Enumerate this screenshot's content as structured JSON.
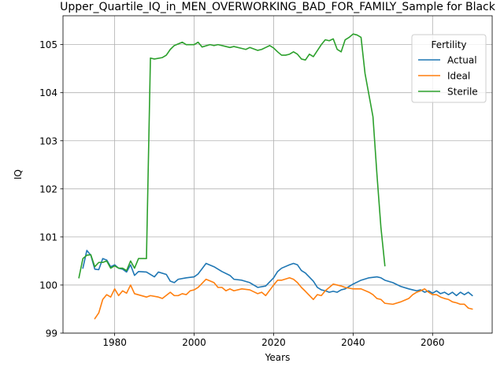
{
  "chart_data": {
    "type": "line",
    "title": "Upper_Quartile_IQ_in_MEN_OVERWORKING_BAD_FOR_FAMILY_Sample for Black",
    "xlabel": "Years",
    "ylabel": "IQ",
    "xlim": [
      1967,
      2075
    ],
    "ylim": [
      99,
      105.6
    ],
    "xticks": [
      1980,
      2000,
      2020,
      2040,
      2060
    ],
    "yticks": [
      99,
      100,
      101,
      102,
      103,
      104,
      105
    ],
    "grid": true,
    "legend": {
      "title": "Fertility",
      "placement": "top-right"
    },
    "series": [
      {
        "name": "Actual",
        "color": "#1f77b4",
        "x": [
          1972,
          1973,
          1974,
          1975,
          1976,
          1977,
          1978,
          1979,
          1980,
          1981,
          1982,
          1983,
          1984,
          1985,
          1986,
          1988,
          1990,
          1991,
          1993,
          1994,
          1995,
          1996,
          1998,
          2000,
          2001,
          2003,
          2005,
          2007,
          2009,
          2010,
          2012,
          2014,
          2016,
          2018,
          2020,
          2021,
          2022,
          2024,
          2025,
          2026,
          2027,
          2028,
          2030,
          2031,
          2032,
          2033,
          2034,
          2035,
          2036,
          2037,
          2038,
          2040,
          2042,
          2044,
          2046,
          2047,
          2048,
          2050,
          2052,
          2054,
          2055,
          2056,
          2057,
          2058,
          2059,
          2060,
          2061,
          2062,
          2063,
          2064,
          2065,
          2066,
          2067,
          2068,
          2069,
          2070
        ],
        "y": [
          100.35,
          100.72,
          100.62,
          100.33,
          100.32,
          100.55,
          100.52,
          100.38,
          100.42,
          100.35,
          100.33,
          100.27,
          100.42,
          100.2,
          100.28,
          100.27,
          100.17,
          100.27,
          100.22,
          100.08,
          100.05,
          100.12,
          100.15,
          100.17,
          100.23,
          100.45,
          100.38,
          100.28,
          100.2,
          100.12,
          100.1,
          100.05,
          99.95,
          99.98,
          100.15,
          100.28,
          100.35,
          100.42,
          100.45,
          100.42,
          100.3,
          100.25,
          100.08,
          99.95,
          99.9,
          99.88,
          99.85,
          99.87,
          99.85,
          99.9,
          99.92,
          100.02,
          100.1,
          100.15,
          100.17,
          100.15,
          100.1,
          100.05,
          99.97,
          99.92,
          99.9,
          99.88,
          99.9,
          99.85,
          99.88,
          99.83,
          99.88,
          99.82,
          99.85,
          99.8,
          99.85,
          99.78,
          99.85,
          99.8,
          99.85,
          99.78
        ]
      },
      {
        "name": "Ideal",
        "color": "#ff7f0e",
        "x": [
          1975,
          1976,
          1977,
          1978,
          1979,
          1980,
          1981,
          1982,
          1983,
          1984,
          1985,
          1988,
          1989,
          1991,
          1992,
          1994,
          1995,
          1996,
          1997,
          1998,
          1999,
          2000,
          2001,
          2003,
          2005,
          2006,
          2007,
          2008,
          2009,
          2010,
          2012,
          2014,
          2016,
          2017,
          2018,
          2020,
          2021,
          2022,
          2024,
          2025,
          2026,
          2027,
          2028,
          2030,
          2031,
          2032,
          2033,
          2035,
          2036,
          2037,
          2038,
          2040,
          2042,
          2044,
          2045,
          2046,
          2047,
          2048,
          2050,
          2052,
          2054,
          2055,
          2056,
          2057,
          2058,
          2059,
          2060,
          2061,
          2062,
          2063,
          2064,
          2065,
          2066,
          2067,
          2068,
          2069,
          2070
        ],
        "y": [
          99.3,
          99.42,
          99.7,
          99.8,
          99.75,
          99.92,
          99.78,
          99.88,
          99.83,
          100.0,
          99.82,
          99.75,
          99.78,
          99.75,
          99.72,
          99.85,
          99.78,
          99.78,
          99.82,
          99.8,
          99.88,
          99.9,
          99.95,
          100.12,
          100.05,
          99.95,
          99.95,
          99.88,
          99.92,
          99.88,
          99.92,
          99.9,
          99.82,
          99.85,
          99.78,
          100.0,
          100.1,
          100.1,
          100.15,
          100.12,
          100.05,
          99.95,
          99.87,
          99.7,
          99.8,
          99.78,
          99.88,
          100.02,
          100.0,
          99.98,
          99.95,
          99.92,
          99.92,
          99.85,
          99.8,
          99.72,
          99.7,
          99.62,
          99.6,
          99.65,
          99.72,
          99.8,
          99.85,
          99.88,
          99.92,
          99.85,
          99.8,
          99.8,
          99.75,
          99.72,
          99.7,
          99.65,
          99.63,
          99.6,
          99.6,
          99.52,
          99.5
        ]
      },
      {
        "name": "Sterile",
        "color": "#2ca02c",
        "x": [
          1971,
          1972,
          1973,
          1974,
          1975,
          1976,
          1977,
          1978,
          1979,
          1980,
          1981,
          1982,
          1983,
          1984,
          1985,
          1986,
          1987,
          1988,
          1989,
          1990,
          1992,
          1993,
          1994,
          1995,
          1997,
          1998,
          2000,
          2001,
          2002,
          2004,
          2005,
          2006,
          2008,
          2009,
          2010,
          2012,
          2013,
          2014,
          2016,
          2017,
          2018,
          2019,
          2020,
          2021,
          2022,
          2023,
          2024,
          2025,
          2026,
          2027,
          2028,
          2029,
          2030,
          2032,
          2033,
          2034,
          2035,
          2036,
          2037,
          2038,
          2039,
          2040,
          2041,
          2042,
          2043,
          2045,
          2046,
          2047,
          2048
        ],
        "y": [
          100.15,
          100.55,
          100.62,
          100.63,
          100.38,
          100.47,
          100.47,
          100.5,
          100.35,
          100.4,
          100.35,
          100.35,
          100.3,
          100.5,
          100.35,
          100.55,
          100.55,
          100.55,
          104.72,
          104.7,
          104.73,
          104.78,
          104.9,
          104.98,
          105.05,
          105.0,
          105.0,
          105.05,
          104.95,
          105.0,
          104.98,
          105.0,
          104.96,
          104.94,
          104.96,
          104.92,
          104.9,
          104.94,
          104.88,
          104.9,
          104.94,
          104.98,
          104.93,
          104.85,
          104.78,
          104.78,
          104.8,
          104.85,
          104.8,
          104.7,
          104.68,
          104.8,
          104.75,
          105.0,
          105.1,
          105.08,
          105.12,
          104.9,
          104.85,
          105.1,
          105.15,
          105.22,
          105.2,
          105.15,
          104.4,
          103.5,
          102.3,
          101.2,
          100.4
        ]
      }
    ]
  }
}
